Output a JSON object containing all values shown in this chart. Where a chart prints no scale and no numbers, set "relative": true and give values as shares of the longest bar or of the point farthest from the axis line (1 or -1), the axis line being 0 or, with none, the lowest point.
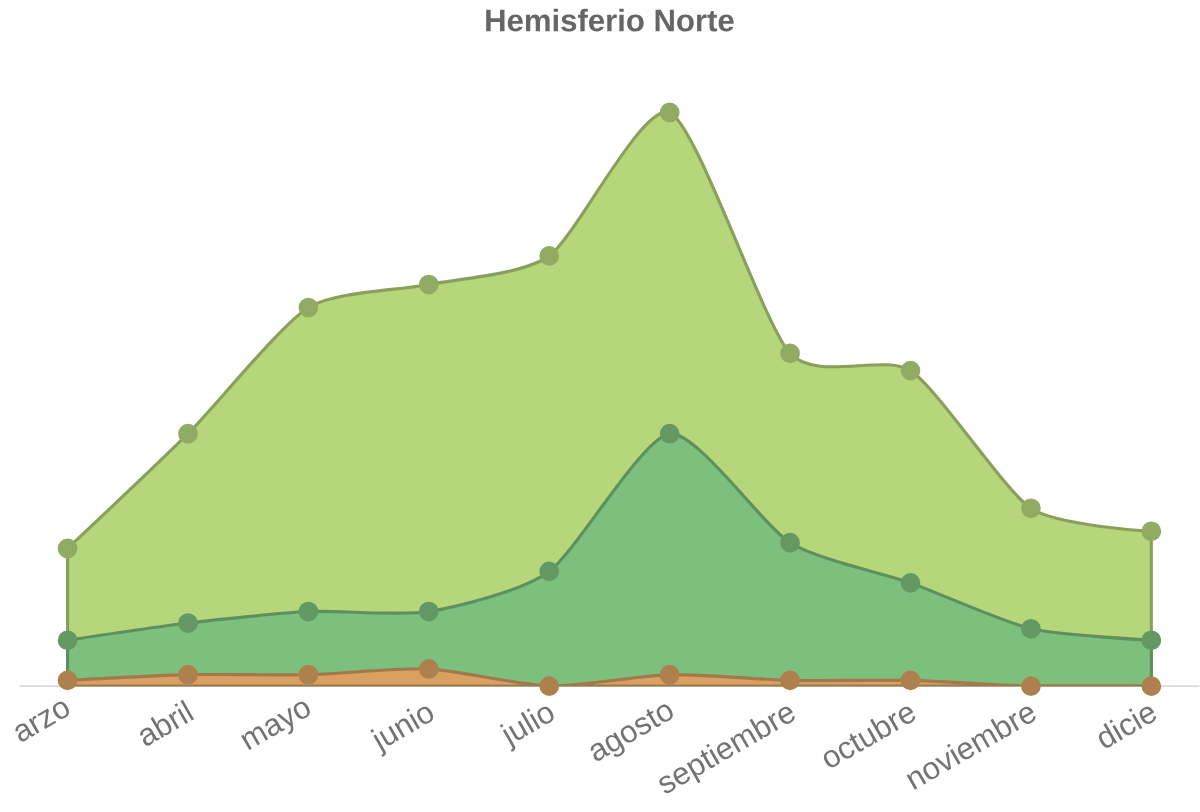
{
  "chart_data": {
    "type": "area",
    "title": "Hemisferio Norte",
    "relative": true,
    "marker": "circle",
    "categories": [
      "arzo",
      "abril",
      "mayo",
      "junio",
      "julio",
      "agosto",
      "septiembre",
      "octubre",
      "noviembre",
      "dicie"
    ],
    "series": [
      {
        "color": "#b5d67a",
        "values": [
          0.24,
          0.44,
          0.66,
          0.7,
          0.75,
          1,
          0.58,
          0.55,
          0.31,
          0.27
        ]
      },
      {
        "color": "#7dbf7d",
        "values": [
          0.08,
          0.11,
          0.13,
          0.13,
          0.2,
          0.44,
          0.25,
          0.18,
          0.1,
          0.08
        ]
      },
      {
        "color": "#d9a062",
        "values": [
          0.01,
          0.02,
          0.02,
          0.03,
          0.0,
          0.02,
          0.01,
          0.01,
          0.0,
          0.0
        ]
      }
    ]
  }
}
